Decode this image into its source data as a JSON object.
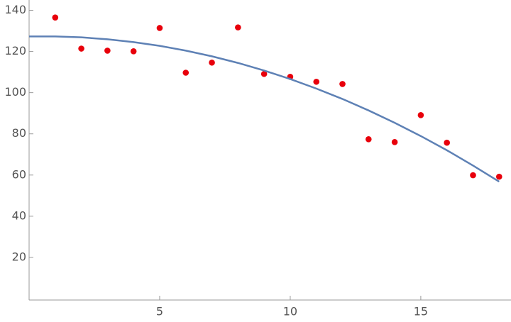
{
  "chart_data": {
    "type": "scatter",
    "xlim": [
      0,
      18.4
    ],
    "ylim": [
      0,
      145
    ],
    "xticks": [
      5,
      10,
      15
    ],
    "yticks": [
      20,
      40,
      60,
      80,
      100,
      120,
      140
    ],
    "series": [
      {
        "type": "scatter",
        "color": "#e8000b",
        "x": [
          1,
          2,
          3,
          4,
          5,
          6,
          7,
          8,
          9,
          10,
          11,
          12,
          13,
          14,
          15,
          16,
          17,
          18
        ],
        "values": [
          136.5,
          121.4,
          120.4,
          120.1,
          131.4,
          109.7,
          114.6,
          131.7,
          109.1,
          107.7,
          105.3,
          104.2,
          77.4,
          76.0,
          89.1,
          75.7,
          59.9,
          59.2
        ]
      },
      {
        "type": "line",
        "color": "#5e81b5",
        "x": [
          0,
          1,
          2,
          3,
          4,
          5,
          6,
          7,
          8,
          9,
          10,
          11,
          12,
          13,
          14,
          15,
          16,
          17,
          18
        ],
        "values": [
          127.3,
          127.31,
          126.86,
          125.94,
          124.56,
          122.73,
          120.42,
          117.66,
          114.44,
          110.75,
          106.6,
          101.99,
          96.94,
          91.38,
          85.38,
          78.93,
          72.03,
          64.6,
          56.8
        ]
      }
    ]
  }
}
